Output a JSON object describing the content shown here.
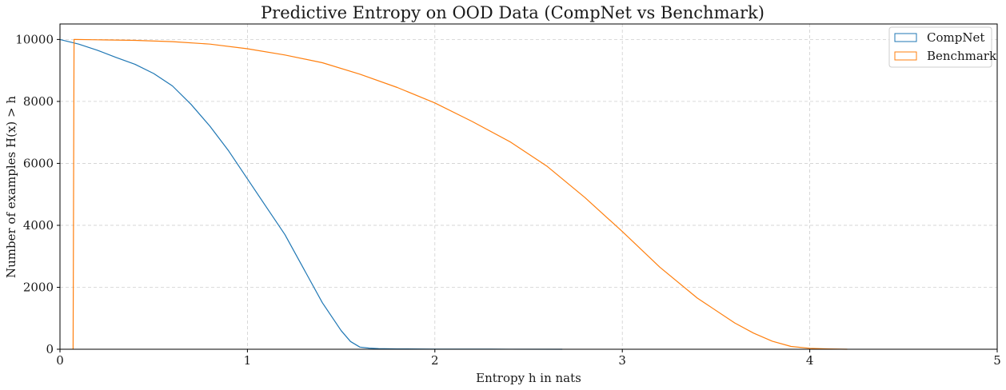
{
  "chart_data": {
    "type": "line",
    "title": "Predictive Entropy on OOD Data (CompNet vs Benchmark)",
    "xlabel": "Entropy h in nats",
    "ylabel": "Number of examples H(x) > h",
    "xlim": [
      0,
      5
    ],
    "ylim": [
      0,
      10500
    ],
    "xticks": [
      0,
      1,
      2,
      3,
      4,
      5
    ],
    "yticks": [
      0,
      2000,
      4000,
      6000,
      8000,
      10000
    ],
    "grid": true,
    "legend_position": "top-right",
    "series": [
      {
        "name": "CompNet",
        "color": "#1f77b4",
        "x": [
          0,
          0.1,
          0.2,
          0.3,
          0.4,
          0.5,
          0.6,
          0.7,
          0.8,
          0.9,
          1.0,
          1.1,
          1.2,
          1.3,
          1.4,
          1.45,
          1.5,
          1.55,
          1.6,
          1.65,
          1.7,
          1.8,
          2.0,
          2.3,
          2.68
        ],
        "y": [
          10000,
          9850,
          9650,
          9420,
          9200,
          8900,
          8500,
          7900,
          7200,
          6400,
          5500,
          4600,
          3700,
          2600,
          1500,
          1050,
          600,
          250,
          70,
          35,
          20,
          10,
          5,
          2,
          0
        ]
      },
      {
        "name": "Benchmark",
        "color": "#ff7f0e",
        "x": [
          0.07,
          0.075,
          0.08,
          0.2,
          0.4,
          0.6,
          0.8,
          1.0,
          1.2,
          1.4,
          1.6,
          1.8,
          2.0,
          2.2,
          2.4,
          2.6,
          2.8,
          3.0,
          3.2,
          3.4,
          3.6,
          3.7,
          3.8,
          3.9,
          4.0,
          4.1,
          4.2
        ],
        "y": [
          0,
          10000,
          10000,
          9990,
          9970,
          9930,
          9850,
          9700,
          9500,
          9250,
          8880,
          8450,
          7950,
          7350,
          6700,
          5900,
          4900,
          3800,
          2650,
          1650,
          850,
          520,
          260,
          90,
          30,
          10,
          0
        ]
      }
    ]
  }
}
